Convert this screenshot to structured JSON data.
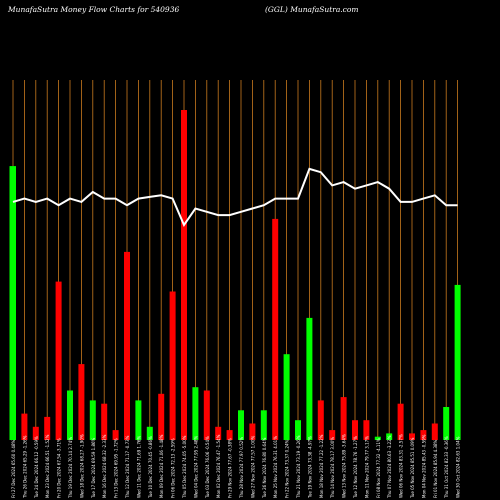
{
  "header": {
    "left": "MunafaSutra  Money Flow  Charts for 540936",
    "right": "(GGL) MunafaSutra.com"
  },
  "chart_data": {
    "type": "bar",
    "title": "MunafaSutra  Money Flow  Charts for 540936",
    "subtitle": "(GGL) MunafaSutra.com",
    "grid": true,
    "ylim": [
      0,
      100
    ],
    "colors": {
      "up": "#00ff00",
      "down": "#ff0000",
      "line": "#ffffff",
      "grid": "#c87a1e",
      "background": "#000000"
    },
    "categories": [
      "Fri 27 Dec 2024 65.60 0.48%",
      "Thu 26 Dec 2024 65.29 -1.26%",
      "Tue 24 Dec 2024 66.12 -0.59%",
      "Mon 23 Dec 2024 66.51 -1.52%",
      "Fri 20 Dec 2024 67.54 -3.71%",
      "Thu 19 Dec 2024 70.14 2.74%",
      "Wed 18 Dec 2024 68.27 -1.90%",
      "Tue 17 Dec 2024 69.59 1.86%",
      "Mon 16 Dec 2024 68.32 -2.33%",
      "Fri 13 Dec 2024 69.95 -1.72%",
      "Thu 12 Dec 2024 71.17 -0.73%",
      "Wed 11 Dec 2024 71.69 1.76%",
      "Tue 10 Dec 2024 70.45 -0.86%",
      "Mon 09 Dec 2024 71.06 -1.48%",
      "Fri 06 Dec 2024 72.13 -2.59%",
      "Thu 05 Dec 2024 74.05 -5.00%",
      "Wed 04 Dec 2024 77.95 2.48%",
      "Tue 03 Dec 2024 76.06 -0.54%",
      "Mon 02 Dec 2024 76.47 -1.54%",
      "Fri 29 Nov 2024 77.67 -0.38%",
      "Thu 28 Nov 2024 77.97 0.52%",
      "Wed 27 Nov 2024 77.57 1.00%",
      "Tue 26 Nov 2024 76.80 0.64%",
      "Mon 25 Nov 2024 76.31 4.01%",
      "Fri 22 Nov 2024 73.37 0.24%",
      "Thu 21 Nov 2024 73.19 -0.26%",
      "Tue 19 Nov 2024 73.38 -4.97%",
      "Mon 18 Nov 2024 77.22 -1.22%",
      "Thu 14 Nov 2024 78.17 3.00%",
      "Wed 13 Nov 2024 75.89 -3.64%",
      "Tue 12 Nov 2024 78.76 -1.27%",
      "Mon 11 Nov 2024 79.77 3.17%",
      "Fri 08 Nov 2024 77.32 -4.11%",
      "Thu 07 Nov 2024 80.63 -3.22%",
      "Wed 06 Nov 2024 83.31 -2.57%",
      "Tue 05 Nov 2024 85.51 0.09%",
      "Mon 04 Nov 2024 85.43 -0.59%",
      "Fri 01 Nov 2024 85.94 4.38%",
      "Thu 31 Oct 2024 82.33 -0.36%",
      "Wed 30 Oct 2024 82.63 1.04%"
    ],
    "series": [
      {
        "kind": "bar",
        "direction": [
          "up",
          "down",
          "down",
          "down",
          "down",
          "up",
          "down",
          "up",
          "down",
          "down",
          "down",
          "up",
          "up",
          "down",
          "down",
          "down",
          "up",
          "down",
          "down",
          "down",
          "up",
          "down",
          "up",
          "down",
          "up",
          "up",
          "up",
          "down",
          "down",
          "down",
          "down",
          "down",
          "up",
          "up",
          "down",
          "down",
          "down",
          "down",
          "up",
          "up"
        ],
        "values": [
          83,
          8,
          4,
          7,
          48,
          15,
          23,
          12,
          11,
          3,
          57,
          12,
          4,
          14,
          45,
          100,
          16,
          15,
          4,
          3,
          9,
          5,
          9,
          67,
          26,
          6,
          37,
          12,
          3,
          13,
          6,
          6,
          1,
          2,
          11,
          2,
          3,
          5,
          10,
          47
        ]
      },
      {
        "kind": "line",
        "values": [
          77,
          78,
          77,
          78,
          76,
          78,
          77,
          80,
          78,
          78,
          76,
          78,
          78.5,
          79,
          78,
          70,
          75,
          74,
          73,
          73,
          74,
          75,
          76,
          78,
          78,
          78,
          87,
          86,
          82,
          83,
          81,
          82,
          83,
          81,
          77,
          77,
          78,
          79,
          76,
          76
        ]
      }
    ]
  }
}
